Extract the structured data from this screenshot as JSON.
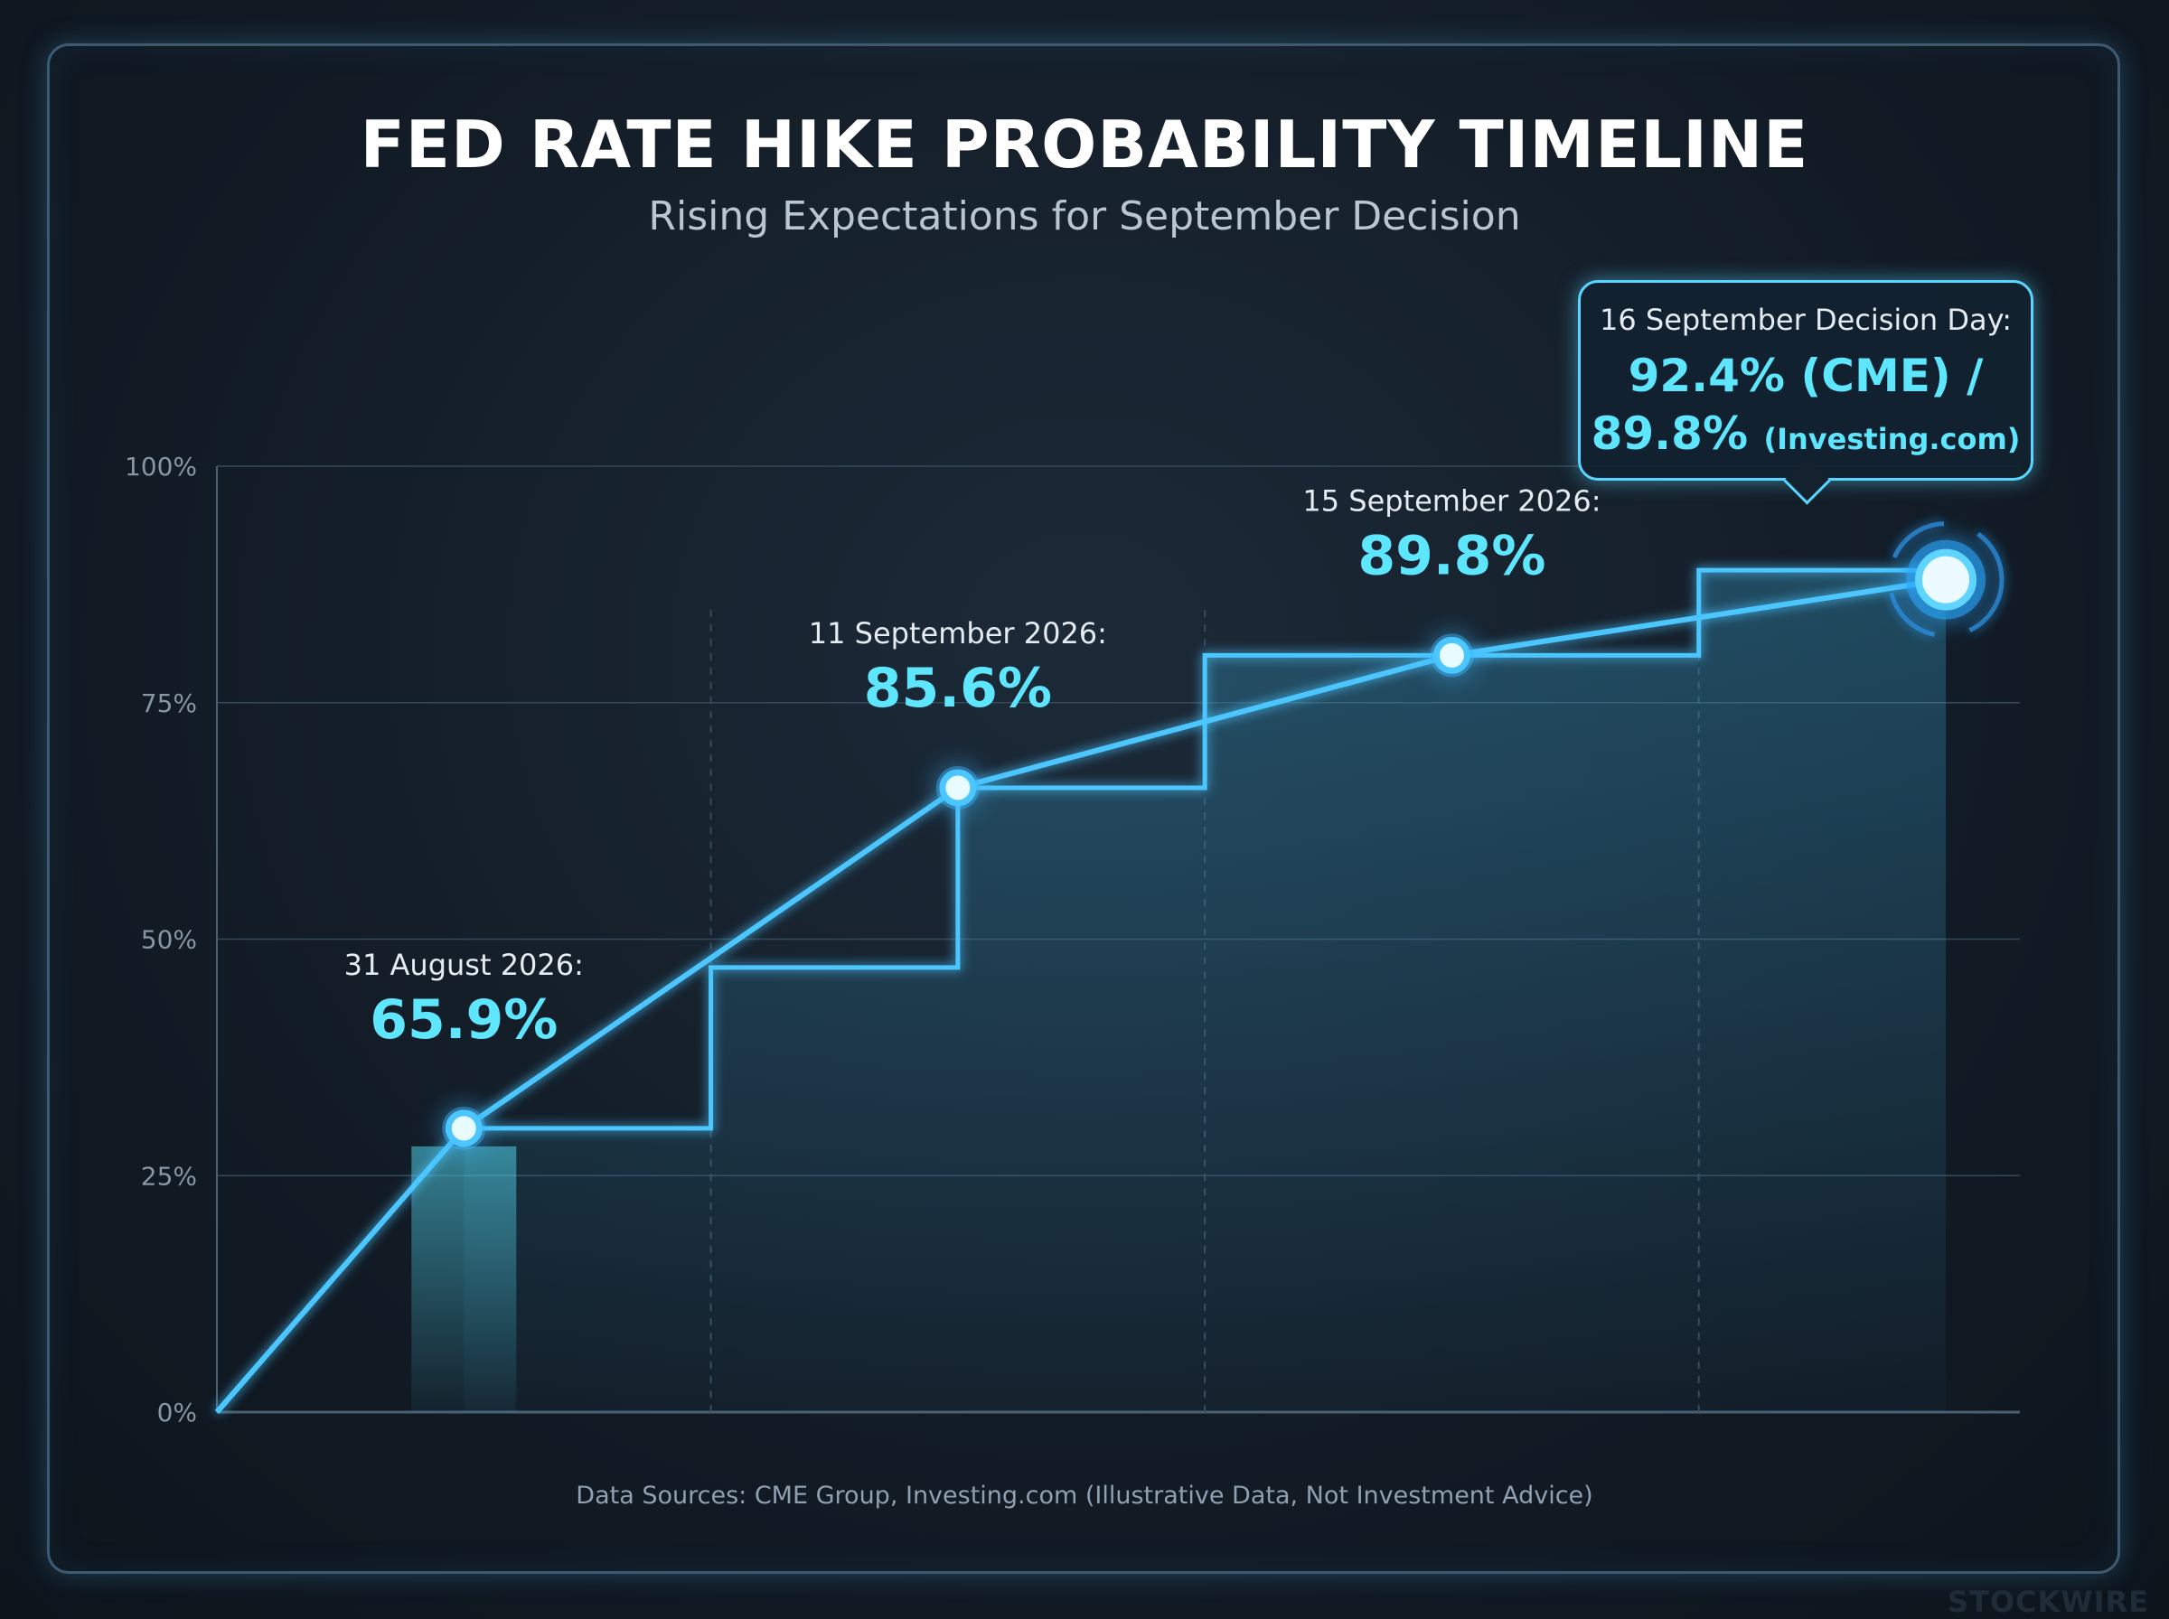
{
  "title": "FED RATE HIKE PROBABILITY TIMELINE",
  "subtitle": "Rising Expectations for September Decision",
  "source": "Data Sources: CME Group, Investing.com (Illustrative Data, Not Investment Advice)",
  "watermark": "STOCKWIRE",
  "colors": {
    "line": "#4cc6ff",
    "accent": "#5fe6ff",
    "grid": "#34495a",
    "background": "#131c26"
  },
  "chart_data": {
    "type": "line",
    "title": "FED RATE HIKE PROBABILITY TIMELINE",
    "subtitle": "Rising Expectations for September Decision",
    "y_ticks": [
      "0%",
      "25%",
      "50%",
      "75%",
      "100%"
    ],
    "ylim": [
      0,
      100
    ],
    "grid": true,
    "series": [
      {
        "points": [
          {
            "x": 0,
            "y": 0
          },
          {
            "x": 1,
            "y": 30
          },
          {
            "x": 3,
            "y": 66
          },
          {
            "x": 5,
            "y": 80
          },
          {
            "x": 7,
            "y": 88
          }
        ]
      },
      {
        "type": "step",
        "points": [
          {
            "x": 1,
            "y": 30
          },
          {
            "x": 2,
            "y": 47
          },
          {
            "x": 3,
            "y": 66
          },
          {
            "x": 4,
            "y": 80
          },
          {
            "x": 6,
            "y": 89
          },
          {
            "x": 7,
            "y": 89
          }
        ]
      }
    ],
    "xlim": [
      0,
      7.3
    ],
    "annotations": [
      {
        "label": "31 August 2026:",
        "value": "65.9%",
        "x": 1,
        "y": 30
      },
      {
        "label": "11 September 2026:",
        "value": "85.6%",
        "x": 3,
        "y": 66
      },
      {
        "label": "15 September 2026:",
        "value": "89.8%",
        "x": 5,
        "y": 80
      }
    ],
    "callout": {
      "label": "16 September Decision Day:",
      "line1": "92.4% (CME) /",
      "line2_value": "89.8%",
      "line2_source": "(Investing.com)",
      "x": 7,
      "y": 88
    }
  }
}
